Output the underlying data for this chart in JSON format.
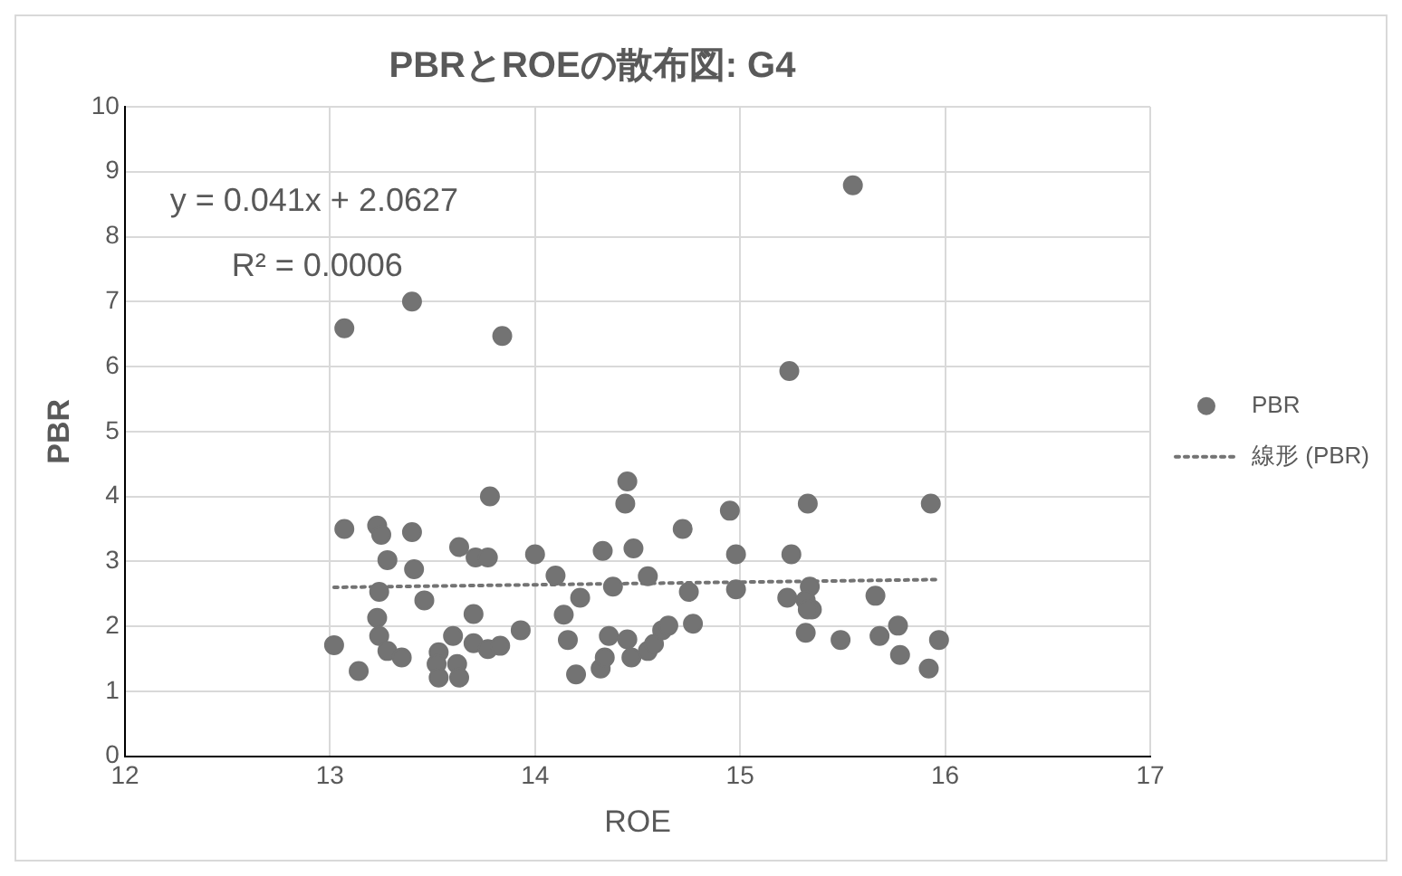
{
  "chart_data": {
    "type": "scatter",
    "title": "PBRとROEの散布図: G4",
    "xlabel": "ROE",
    "ylabel": "PBR",
    "xlim": [
      12,
      17
    ],
    "xticks": [
      12,
      13,
      14,
      15,
      16,
      17
    ],
    "ylim": [
      0,
      10
    ],
    "yticks": [
      0,
      1,
      2,
      3,
      4,
      5,
      6,
      7,
      8,
      9,
      10
    ],
    "grid": true,
    "legend": "right",
    "marker": "circle",
    "annotations": [
      "y = 0.041x + 2.0627",
      "R² = 0.0006"
    ],
    "series": [
      {
        "name": "PBR",
        "color": "#737373",
        "x": [
          13.02,
          13.07,
          13.07,
          13.14,
          13.23,
          13.25,
          13.28,
          13.24,
          13.23,
          13.24,
          13.28,
          13.35,
          13.4,
          13.4,
          13.41,
          13.46,
          13.53,
          13.52,
          13.53,
          13.6,
          13.62,
          13.63,
          13.63,
          13.7,
          13.71,
          13.77,
          13.7,
          13.77,
          13.83,
          13.78,
          13.84,
          13.93,
          14.0,
          14.1,
          14.14,
          14.16,
          14.22,
          14.2,
          14.32,
          14.34,
          14.36,
          14.33,
          14.38,
          14.44,
          14.45,
          14.45,
          14.47,
          14.48,
          14.55,
          14.55,
          14.58,
          14.62,
          14.65,
          14.72,
          14.75,
          14.77,
          14.95,
          14.98,
          14.98,
          15.24,
          15.25,
          15.23,
          15.33,
          15.34,
          15.32,
          15.35,
          15.33,
          15.32,
          15.49,
          15.55,
          15.66,
          15.68,
          15.77,
          15.78,
          15.93,
          15.92,
          15.97
        ],
        "values": [
          1.71,
          6.59,
          3.5,
          1.31,
          3.55,
          3.41,
          3.02,
          2.53,
          2.13,
          1.85,
          1.62,
          1.52,
          7.0,
          3.45,
          2.88,
          2.4,
          1.6,
          1.42,
          1.21,
          1.85,
          1.42,
          1.21,
          3.22,
          2.19,
          3.06,
          3.06,
          1.74,
          1.65,
          1.7,
          4.0,
          6.47,
          1.94,
          3.11,
          2.78,
          2.18,
          1.79,
          2.44,
          1.26,
          1.35,
          1.52,
          1.85,
          3.16,
          2.61,
          3.89,
          4.23,
          1.8,
          1.52,
          3.2,
          2.77,
          1.62,
          1.73,
          1.94,
          2.01,
          3.5,
          2.53,
          2.04,
          3.78,
          3.11,
          2.57,
          5.93,
          3.11,
          2.44,
          3.89,
          2.61,
          2.4,
          2.26,
          2.26,
          1.9,
          1.79,
          8.79,
          2.47,
          1.85,
          2.01,
          1.56,
          3.89,
          1.35,
          1.79
        ]
      },
      {
        "name": "線形 (PBR)",
        "color": "#737373",
        "type": "line",
        "line_style": "dotted",
        "marker": "none",
        "x": [
          13.02,
          15.97
        ],
        "values": [
          2.6,
          2.72
        ]
      }
    ]
  }
}
